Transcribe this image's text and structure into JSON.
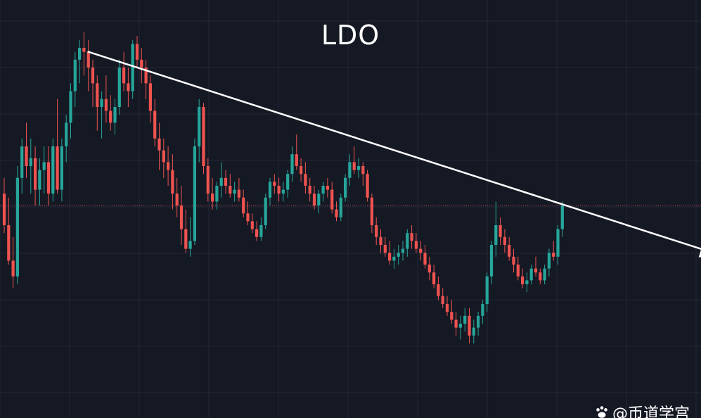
{
  "colors": {
    "background": "#151924",
    "grid": "#232838",
    "up": "#26a69a",
    "down": "#ef5350",
    "trendline": "#ffffff",
    "price_line": "#ef5350",
    "text": "#ffffff"
  },
  "watermark": {
    "icon": "paw-icon",
    "text": "@币道学宫"
  },
  "chart_data": {
    "type": "candlestick",
    "title": "LDO",
    "xlabel": "",
    "ylabel": "",
    "grid": true,
    "ylim": [
      0.0,
      1.0
    ],
    "current_price": 0.55,
    "candles": [
      [
        0.58,
        0.62,
        0.48,
        0.5
      ],
      [
        0.5,
        0.57,
        0.4,
        0.41
      ],
      [
        0.41,
        0.47,
        0.34,
        0.37
      ],
      [
        0.37,
        0.65,
        0.35,
        0.62
      ],
      [
        0.62,
        0.72,
        0.58,
        0.7
      ],
      [
        0.7,
        0.76,
        0.62,
        0.65
      ],
      [
        0.65,
        0.72,
        0.58,
        0.67
      ],
      [
        0.67,
        0.7,
        0.55,
        0.59
      ],
      [
        0.59,
        0.67,
        0.55,
        0.64
      ],
      [
        0.64,
        0.7,
        0.58,
        0.66
      ],
      [
        0.66,
        0.7,
        0.55,
        0.58
      ],
      [
        0.58,
        0.72,
        0.56,
        0.7
      ],
      [
        0.7,
        0.82,
        0.58,
        0.59
      ],
      [
        0.59,
        0.72,
        0.56,
        0.7
      ],
      [
        0.7,
        0.78,
        0.66,
        0.76
      ],
      [
        0.76,
        0.86,
        0.72,
        0.84
      ],
      [
        0.84,
        0.94,
        0.8,
        0.92
      ],
      [
        0.92,
        0.97,
        0.86,
        0.95
      ],
      [
        0.95,
        0.99,
        0.88,
        0.94
      ],
      [
        0.94,
        0.97,
        0.84,
        0.9
      ],
      [
        0.9,
        0.92,
        0.8,
        0.86
      ],
      [
        0.86,
        0.88,
        0.74,
        0.8
      ],
      [
        0.8,
        0.84,
        0.72,
        0.82
      ],
      [
        0.82,
        0.88,
        0.76,
        0.79
      ],
      [
        0.79,
        0.83,
        0.74,
        0.76
      ],
      [
        0.76,
        0.82,
        0.73,
        0.8
      ],
      [
        0.8,
        0.92,
        0.78,
        0.9
      ],
      [
        0.9,
        0.94,
        0.84,
        0.86
      ],
      [
        0.86,
        0.9,
        0.8,
        0.84
      ],
      [
        0.84,
        0.97,
        0.82,
        0.96
      ],
      [
        0.96,
        0.98,
        0.9,
        0.92
      ],
      [
        0.92,
        0.95,
        0.86,
        0.9
      ],
      [
        0.9,
        0.92,
        0.82,
        0.86
      ],
      [
        0.86,
        0.88,
        0.76,
        0.79
      ],
      [
        0.79,
        0.82,
        0.7,
        0.72
      ],
      [
        0.72,
        0.76,
        0.64,
        0.69
      ],
      [
        0.69,
        0.72,
        0.62,
        0.66
      ],
      [
        0.66,
        0.7,
        0.6,
        0.64
      ],
      [
        0.64,
        0.68,
        0.54,
        0.58
      ],
      [
        0.58,
        0.62,
        0.52,
        0.55
      ],
      [
        0.55,
        0.6,
        0.45,
        0.49
      ],
      [
        0.49,
        0.54,
        0.43,
        0.44
      ],
      [
        0.44,
        0.52,
        0.42,
        0.46
      ],
      [
        0.46,
        0.72,
        0.45,
        0.7
      ],
      [
        0.7,
        0.82,
        0.66,
        0.8
      ],
      [
        0.8,
        0.81,
        0.63,
        0.65
      ],
      [
        0.65,
        0.67,
        0.56,
        0.58
      ],
      [
        0.58,
        0.62,
        0.54,
        0.56
      ],
      [
        0.56,
        0.61,
        0.54,
        0.6
      ],
      [
        0.6,
        0.66,
        0.57,
        0.62
      ],
      [
        0.62,
        0.64,
        0.58,
        0.6
      ],
      [
        0.6,
        0.63,
        0.57,
        0.58
      ],
      [
        0.58,
        0.61,
        0.56,
        0.59
      ],
      [
        0.59,
        0.62,
        0.56,
        0.57
      ],
      [
        0.57,
        0.59,
        0.52,
        0.53
      ],
      [
        0.53,
        0.56,
        0.5,
        0.51
      ],
      [
        0.51,
        0.53,
        0.48,
        0.49
      ],
      [
        0.49,
        0.51,
        0.46,
        0.47
      ],
      [
        0.47,
        0.52,
        0.46,
        0.5
      ],
      [
        0.5,
        0.58,
        0.49,
        0.57
      ],
      [
        0.57,
        0.62,
        0.55,
        0.61
      ],
      [
        0.61,
        0.63,
        0.58,
        0.6
      ],
      [
        0.6,
        0.62,
        0.56,
        0.58
      ],
      [
        0.58,
        0.61,
        0.56,
        0.59
      ],
      [
        0.59,
        0.64,
        0.57,
        0.63
      ],
      [
        0.63,
        0.7,
        0.61,
        0.68
      ],
      [
        0.68,
        0.73,
        0.64,
        0.65
      ],
      [
        0.65,
        0.67,
        0.61,
        0.63
      ],
      [
        0.63,
        0.66,
        0.58,
        0.6
      ],
      [
        0.6,
        0.62,
        0.56,
        0.58
      ],
      [
        0.58,
        0.6,
        0.54,
        0.55
      ],
      [
        0.55,
        0.59,
        0.53,
        0.58
      ],
      [
        0.58,
        0.61,
        0.56,
        0.6
      ],
      [
        0.6,
        0.62,
        0.57,
        0.59
      ],
      [
        0.59,
        0.61,
        0.53,
        0.54
      ],
      [
        0.54,
        0.56,
        0.51,
        0.52
      ],
      [
        0.52,
        0.58,
        0.51,
        0.57
      ],
      [
        0.57,
        0.63,
        0.56,
        0.62
      ],
      [
        0.62,
        0.68,
        0.6,
        0.66
      ],
      [
        0.66,
        0.7,
        0.63,
        0.64
      ],
      [
        0.64,
        0.67,
        0.62,
        0.65
      ],
      [
        0.65,
        0.66,
        0.6,
        0.63
      ],
      [
        0.63,
        0.64,
        0.56,
        0.57
      ],
      [
        0.57,
        0.58,
        0.48,
        0.5
      ],
      [
        0.5,
        0.52,
        0.45,
        0.47
      ],
      [
        0.47,
        0.49,
        0.43,
        0.45
      ],
      [
        0.45,
        0.47,
        0.42,
        0.43
      ],
      [
        0.43,
        0.46,
        0.4,
        0.41
      ],
      [
        0.41,
        0.44,
        0.39,
        0.42
      ],
      [
        0.42,
        0.45,
        0.4,
        0.43
      ],
      [
        0.43,
        0.46,
        0.41,
        0.44
      ],
      [
        0.44,
        0.49,
        0.42,
        0.48
      ],
      [
        0.48,
        0.5,
        0.44,
        0.46
      ],
      [
        0.46,
        0.48,
        0.43,
        0.44
      ],
      [
        0.44,
        0.46,
        0.41,
        0.43
      ],
      [
        0.43,
        0.45,
        0.39,
        0.4
      ],
      [
        0.4,
        0.42,
        0.36,
        0.38
      ],
      [
        0.38,
        0.4,
        0.34,
        0.35
      ],
      [
        0.35,
        0.37,
        0.31,
        0.32
      ],
      [
        0.32,
        0.34,
        0.29,
        0.3
      ],
      [
        0.3,
        0.32,
        0.27,
        0.28
      ],
      [
        0.28,
        0.31,
        0.25,
        0.26
      ],
      [
        0.26,
        0.28,
        0.22,
        0.24
      ],
      [
        0.24,
        0.27,
        0.21,
        0.25
      ],
      [
        0.25,
        0.29,
        0.23,
        0.27
      ],
      [
        0.27,
        0.29,
        0.2,
        0.22
      ],
      [
        0.22,
        0.26,
        0.2,
        0.24
      ],
      [
        0.24,
        0.28,
        0.22,
        0.27
      ],
      [
        0.27,
        0.31,
        0.25,
        0.3
      ],
      [
        0.3,
        0.38,
        0.28,
        0.37
      ],
      [
        0.37,
        0.46,
        0.35,
        0.45
      ],
      [
        0.45,
        0.56,
        0.42,
        0.5
      ],
      [
        0.5,
        0.52,
        0.45,
        0.47
      ],
      [
        0.47,
        0.49,
        0.43,
        0.45
      ],
      [
        0.45,
        0.47,
        0.41,
        0.42
      ],
      [
        0.42,
        0.44,
        0.38,
        0.4
      ],
      [
        0.4,
        0.42,
        0.36,
        0.37
      ],
      [
        0.37,
        0.39,
        0.34,
        0.35
      ],
      [
        0.35,
        0.38,
        0.33,
        0.36
      ],
      [
        0.36,
        0.4,
        0.35,
        0.39
      ],
      [
        0.39,
        0.42,
        0.37,
        0.38
      ],
      [
        0.38,
        0.39,
        0.35,
        0.36
      ],
      [
        0.36,
        0.4,
        0.35,
        0.39
      ],
      [
        0.39,
        0.44,
        0.37,
        0.43
      ],
      [
        0.43,
        0.46,
        0.41,
        0.42
      ],
      [
        0.42,
        0.5,
        0.4,
        0.49
      ],
      [
        0.49,
        0.56,
        0.47,
        0.55
      ]
    ],
    "trendline": {
      "label": "",
      "points": [
        [
          19,
          0.94
        ],
        [
          160,
          0.43
        ]
      ]
    }
  }
}
